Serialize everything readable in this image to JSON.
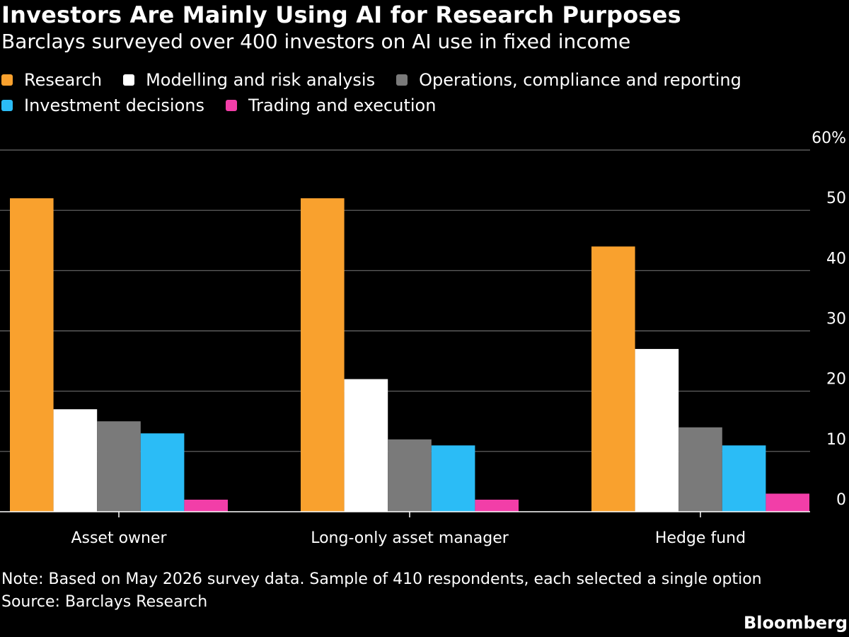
{
  "header": {
    "title": "Investors Are Mainly Using AI for Research Purposes",
    "subtitle": "Barclays surveyed over 400 investors on AI use in fixed income"
  },
  "legend": [
    {
      "label": "Research",
      "color": "#f9a12e"
    },
    {
      "label": "Modelling and risk analysis",
      "color": "#ffffff"
    },
    {
      "label": "Operations, compliance and reporting",
      "color": "#7a7a7a"
    },
    {
      "label": "Investment decisions",
      "color": "#2bbcf6"
    },
    {
      "label": "Trading and execution",
      "color": "#f23ea8"
    }
  ],
  "footer": {
    "note": "Note: Based on May 2026 survey data. Sample of 410 respondents, each selected a single option",
    "source": "Source: Barclays Research",
    "brand": "Bloomberg"
  },
  "chart_data": {
    "type": "bar",
    "categories": [
      "Asset owner",
      "Long-only asset manager",
      "Hedge fund"
    ],
    "series": [
      {
        "name": "Research",
        "color": "#f9a12e",
        "values": [
          52,
          52,
          44
        ]
      },
      {
        "name": "Modelling and risk analysis",
        "color": "#ffffff",
        "values": [
          17,
          22,
          27
        ]
      },
      {
        "name": "Operations, compliance and reporting",
        "color": "#7a7a7a",
        "values": [
          15,
          12,
          14
        ]
      },
      {
        "name": "Investment decisions",
        "color": "#2bbcf6",
        "values": [
          13,
          11,
          11
        ]
      },
      {
        "name": "Trading and execution",
        "color": "#f23ea8",
        "values": [
          2,
          2,
          3
        ]
      }
    ],
    "y_ticks": [
      {
        "value": 0,
        "label": "0"
      },
      {
        "value": 10,
        "label": "10"
      },
      {
        "value": 20,
        "label": "20"
      },
      {
        "value": 30,
        "label": "30"
      },
      {
        "value": 40,
        "label": "40"
      },
      {
        "value": 50,
        "label": "50"
      },
      {
        "value": 60,
        "label": "60%"
      }
    ],
    "ylim": [
      0,
      60
    ],
    "y_axis_side": "right",
    "grid": true,
    "legend_position": "top-left",
    "xlabel": "",
    "ylabel": ""
  }
}
